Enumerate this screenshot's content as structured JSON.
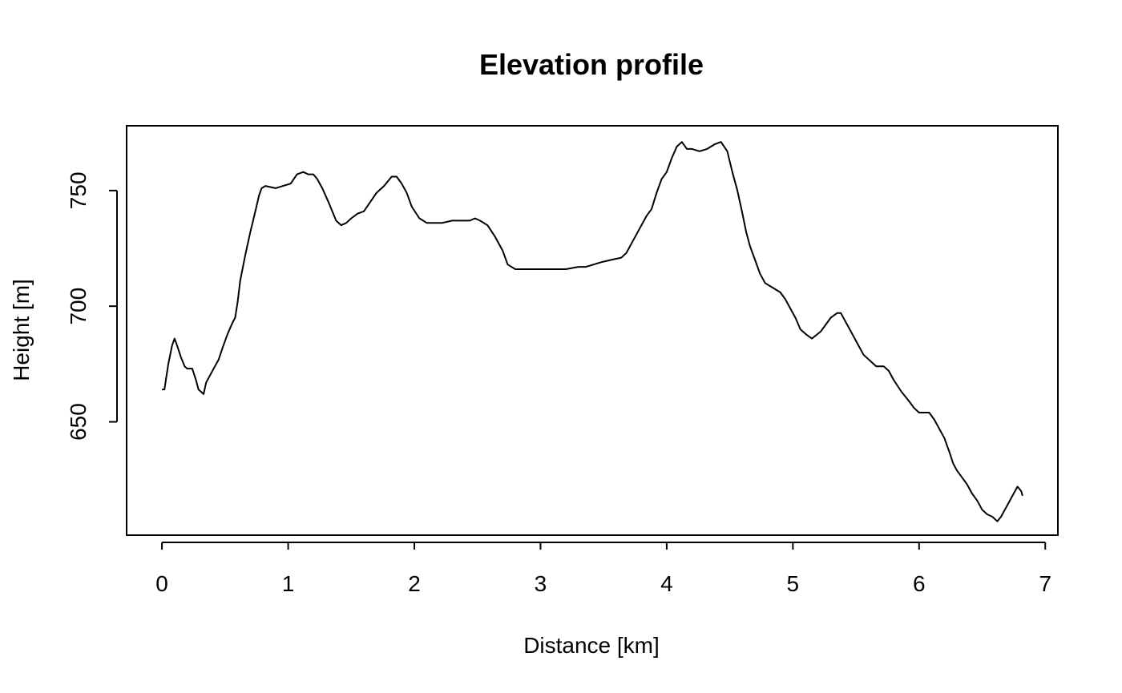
{
  "chart_data": {
    "type": "line",
    "title": "Elevation profile",
    "xlabel": "Distance [km]",
    "ylabel": "Height [m]",
    "xlim": [
      -0.28,
      7.1
    ],
    "ylim": [
      601,
      778
    ],
    "xticks": [
      0,
      1,
      2,
      3,
      4,
      5,
      6,
      7
    ],
    "yticks": [
      650,
      700,
      750
    ],
    "grid": false,
    "legend": "none",
    "line_color": "#000000",
    "series": [
      {
        "x": [
          0.0,
          0.02,
          0.05,
          0.08,
          0.1,
          0.12,
          0.15,
          0.18,
          0.2,
          0.24,
          0.27,
          0.29,
          0.33,
          0.35,
          0.38,
          0.42,
          0.45,
          0.48,
          0.52,
          0.56,
          0.58,
          0.6,
          0.62,
          0.66,
          0.7,
          0.74,
          0.77,
          0.79,
          0.82,
          0.9,
          0.96,
          1.02,
          1.07,
          1.12,
          1.16,
          1.2,
          1.23,
          1.27,
          1.32,
          1.38,
          1.42,
          1.46,
          1.5,
          1.55,
          1.6,
          1.65,
          1.7,
          1.76,
          1.82,
          1.86,
          1.9,
          1.94,
          1.98,
          2.04,
          2.1,
          2.22,
          2.3,
          2.38,
          2.44,
          2.48,
          2.52,
          2.58,
          2.64,
          2.7,
          2.74,
          2.8,
          2.9,
          3.0,
          3.1,
          3.2,
          3.3,
          3.36,
          3.42,
          3.48,
          3.56,
          3.64,
          3.68,
          3.72,
          3.76,
          3.8,
          3.84,
          3.88,
          3.92,
          3.96,
          4.0,
          4.04,
          4.08,
          4.12,
          4.16,
          4.2,
          4.26,
          4.32,
          4.38,
          4.43,
          4.48,
          4.52,
          4.56,
          4.6,
          4.63,
          4.66,
          4.7,
          4.74,
          4.78,
          4.84,
          4.9,
          4.94,
          4.98,
          5.02,
          5.06,
          5.1,
          5.15,
          5.22,
          5.3,
          5.35,
          5.38,
          5.42,
          5.46,
          5.5,
          5.56,
          5.62,
          5.66,
          5.72,
          5.76,
          5.8,
          5.86,
          5.92,
          5.96,
          6.0,
          6.04,
          6.08,
          6.12,
          6.16,
          6.2,
          6.24,
          6.27,
          6.3,
          6.34,
          6.38,
          6.42,
          6.46,
          6.5,
          6.54,
          6.58,
          6.62,
          6.65,
          6.7,
          6.74,
          6.78,
          6.81,
          6.82
        ],
        "y": [
          664,
          664,
          675,
          683,
          686,
          683,
          678,
          674,
          673,
          673,
          668,
          664,
          662,
          667,
          670,
          674,
          677,
          682,
          688,
          693,
          695,
          702,
          711,
          722,
          732,
          741,
          748,
          751,
          752,
          751,
          752,
          753,
          757,
          758,
          757,
          757,
          755,
          751,
          745,
          737,
          735,
          736,
          738,
          740,
          741,
          745,
          749,
          752,
          756,
          756,
          753,
          749,
          743,
          738,
          736,
          736,
          737,
          737,
          737,
          738,
          737,
          735,
          730,
          724,
          718,
          716,
          716,
          716,
          716,
          716,
          717,
          717,
          718,
          719,
          720,
          721,
          723,
          727,
          731,
          735,
          739,
          742,
          749,
          755,
          758,
          764,
          769,
          771,
          768,
          768,
          767,
          768,
          770,
          771,
          767,
          758,
          750,
          740,
          732,
          726,
          720,
          714,
          710,
          708,
          706,
          703,
          699,
          695,
          690,
          688,
          686,
          689,
          695,
          697,
          697,
          693,
          689,
          685,
          679,
          676,
          674,
          674,
          672,
          668,
          663,
          659,
          656,
          654,
          654,
          654,
          651,
          647,
          643,
          637,
          632,
          629,
          626,
          623,
          619,
          616,
          612,
          610,
          609,
          607,
          609,
          614,
          618,
          622,
          620,
          618
        ]
      }
    ]
  }
}
